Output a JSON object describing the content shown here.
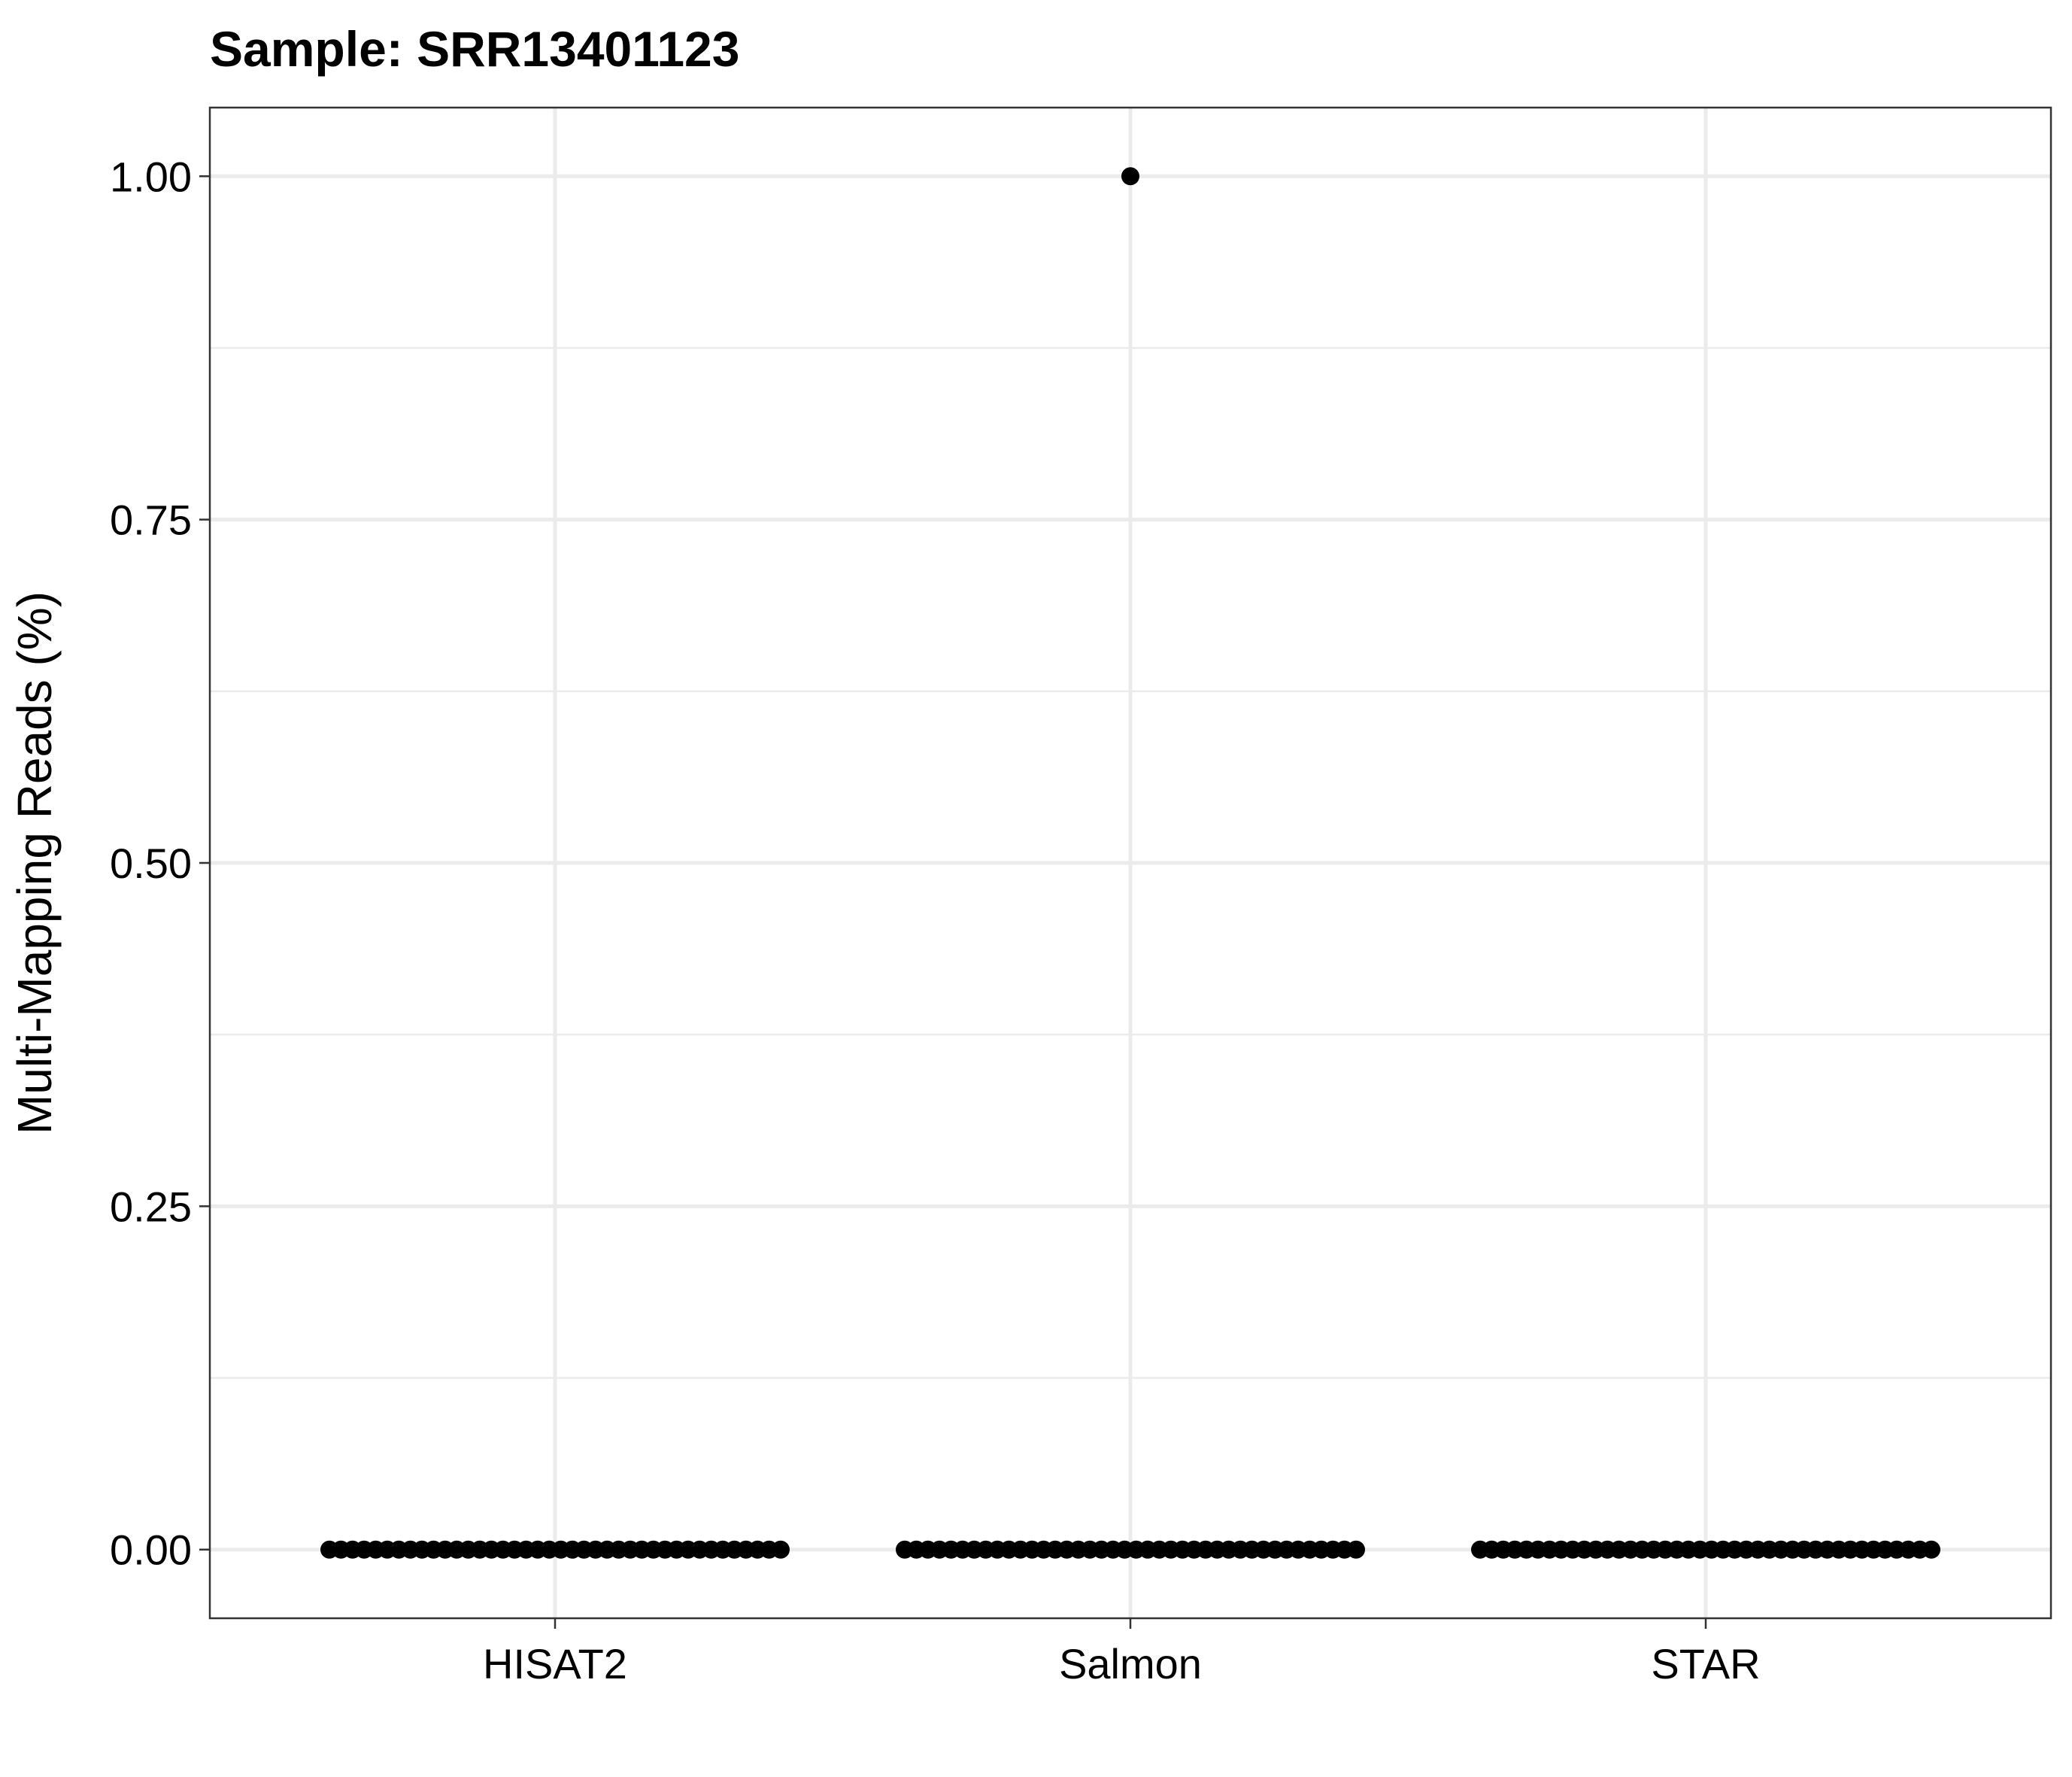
{
  "chart_data": {
    "type": "scatter",
    "title": "Sample: SRR13401123",
    "xlabel": "",
    "ylabel": "Multi-Mapping Reads (%)",
    "categories": [
      "HISAT2",
      "Salmon",
      "STAR"
    ],
    "ylim": [
      -0.05,
      1.05
    ],
    "y_ticks": [
      "0.00",
      "0.25",
      "0.50",
      "0.75",
      "1.00"
    ],
    "grid": true,
    "point_color": "#000000",
    "grid_color": "#ebebeb",
    "series": [
      {
        "values": [
          0,
          0,
          0,
          0,
          0,
          0,
          0,
          0,
          0,
          0,
          0,
          0,
          0,
          0,
          0,
          0,
          0,
          0,
          0,
          0,
          0,
          0,
          0,
          0,
          0,
          0,
          0,
          0,
          0,
          0,
          0,
          0,
          0,
          0,
          0,
          0,
          0,
          0,
          0,
          0
        ]
      },
      {
        "values": [
          0,
          0,
          0,
          0,
          0,
          0,
          0,
          0,
          0,
          0,
          0,
          0,
          0,
          0,
          0,
          0,
          0,
          0,
          0,
          0,
          0,
          0,
          0,
          0,
          0,
          0,
          0,
          0,
          0,
          0,
          0,
          0,
          0,
          0,
          0,
          0,
          0,
          0,
          0,
          0,
          1.0
        ]
      },
      {
        "values": [
          0,
          0,
          0,
          0,
          0,
          0,
          0,
          0,
          0,
          0,
          0,
          0,
          0,
          0,
          0,
          0,
          0,
          0,
          0,
          0,
          0,
          0,
          0,
          0,
          0,
          0,
          0,
          0,
          0,
          0,
          0,
          0,
          0,
          0,
          0,
          0,
          0,
          0,
          0,
          0
        ]
      }
    ]
  }
}
